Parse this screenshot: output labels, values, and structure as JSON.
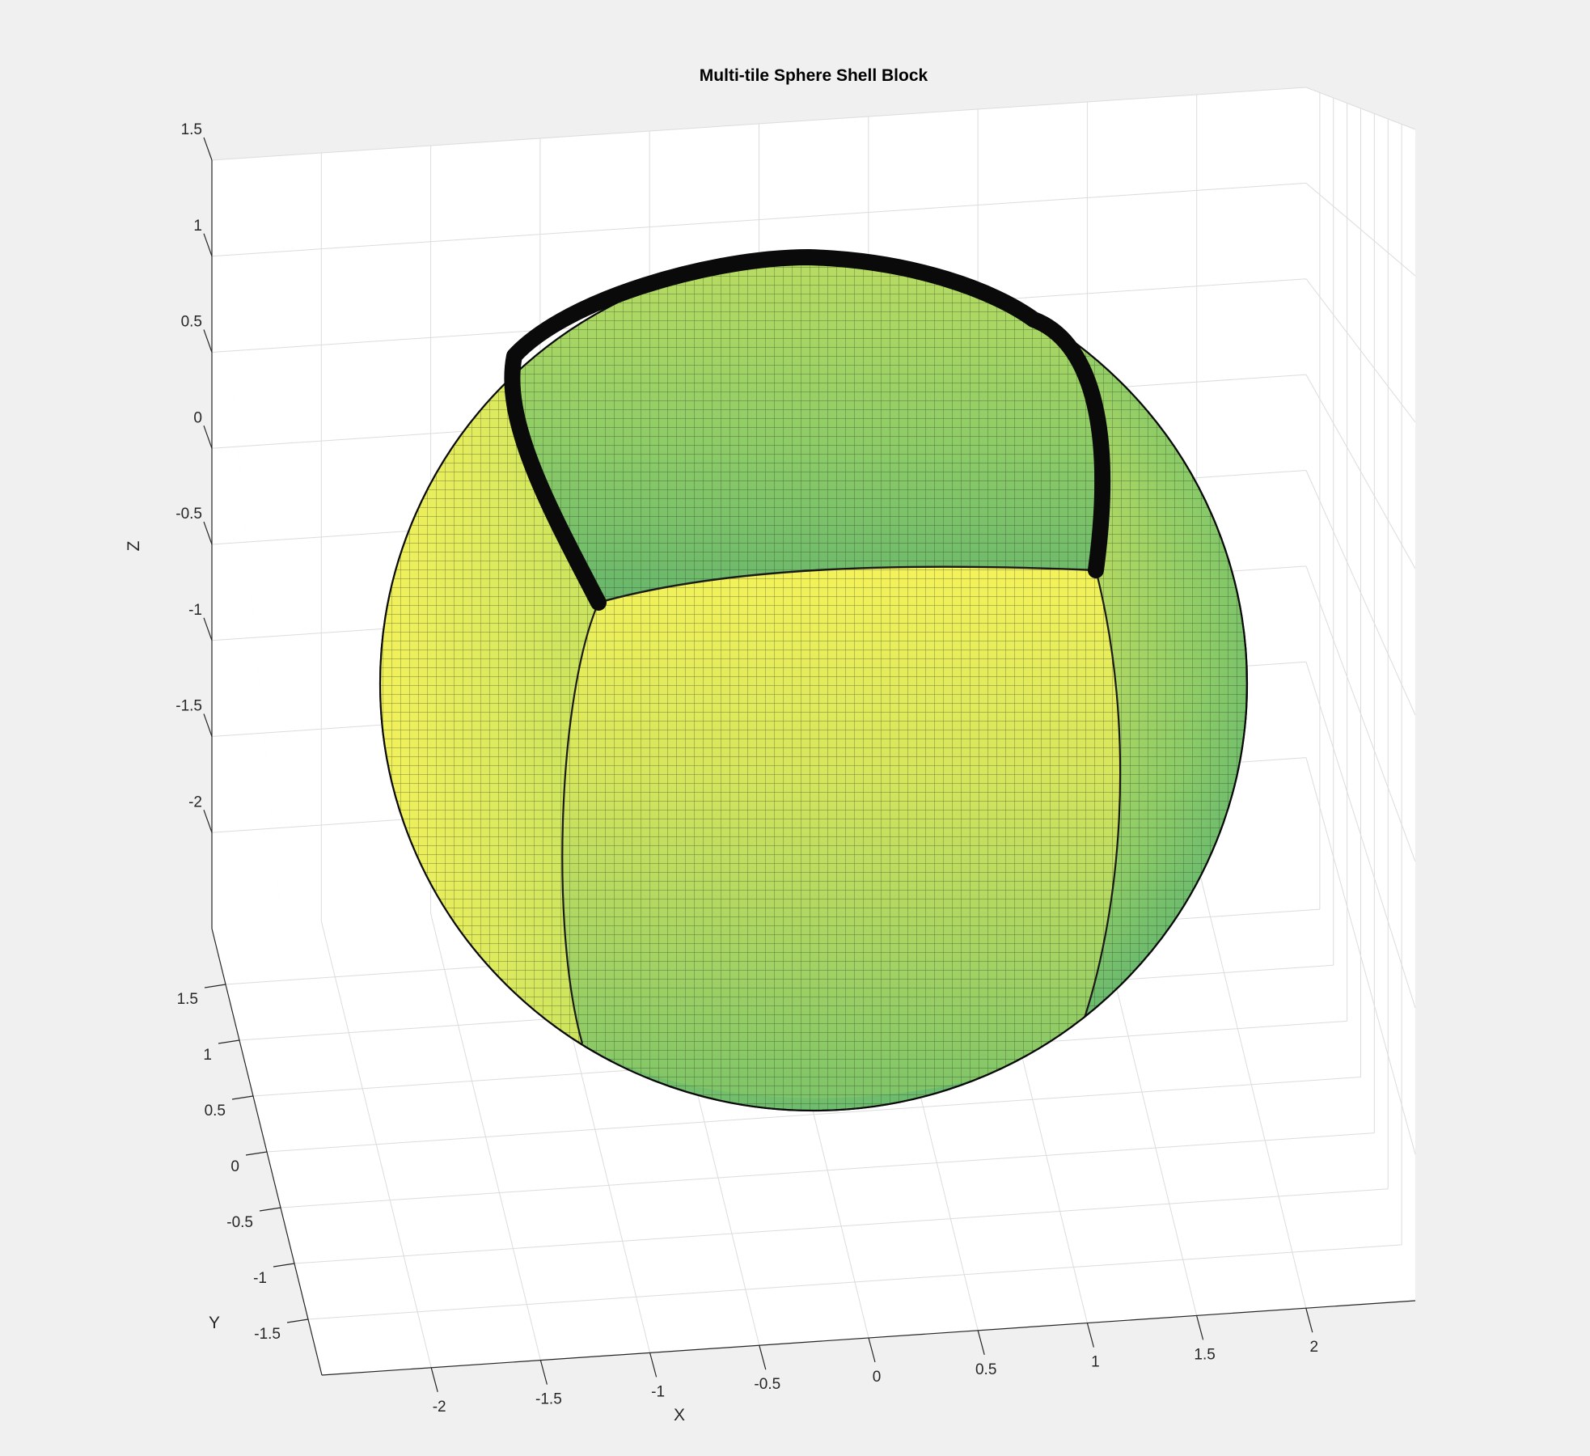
{
  "chart_data": {
    "type": "surface",
    "title": "Multi-tile Sphere Shell Block",
    "xlabel": "X",
    "ylabel": "Y",
    "zlabel": "Z",
    "xlim": [
      -2.5,
      2.5
    ],
    "ylim": [
      -2,
      2
    ],
    "zlim": [
      -2.5,
      1.5
    ],
    "x_ticks": [
      -2,
      -1.5,
      -1,
      -0.5,
      0,
      0.5,
      1,
      1.5,
      2
    ],
    "y_ticks": [
      -1.5,
      -1,
      -0.5,
      0,
      0.5,
      1,
      1.5
    ],
    "z_ticks": [
      1.5,
      1,
      0.5,
      0,
      -0.5,
      -1,
      -1.5,
      -2
    ],
    "x_tick_labels": [
      "-2",
      "-1.5",
      "-1",
      "-0.5",
      "0",
      "0.5",
      "1",
      "1.5",
      "2"
    ],
    "y_tick_labels": [
      "-1.5",
      "-1",
      "-0.5",
      "0",
      "0.5",
      "1",
      "1.5"
    ],
    "z_tick_labels": [
      "1.5",
      "1",
      "0.5",
      "0",
      "-0.5",
      "-1",
      "-1.5",
      "-2"
    ],
    "grid": true,
    "colormap": "parula",
    "surface": {
      "shape": "sphere shell",
      "center": [
        0,
        0,
        0
      ],
      "outer_radius": 2,
      "tiles": 3,
      "cutout": "one tile removed at the top, exposing the inner shell"
    },
    "colors": {
      "background": "#f0f0f0",
      "axes_background": "#ffffff",
      "grid": "#dcdcdc",
      "edge": "#000000",
      "surface_light": "#f2f25a",
      "surface_dark": "#5cb46e"
    }
  }
}
